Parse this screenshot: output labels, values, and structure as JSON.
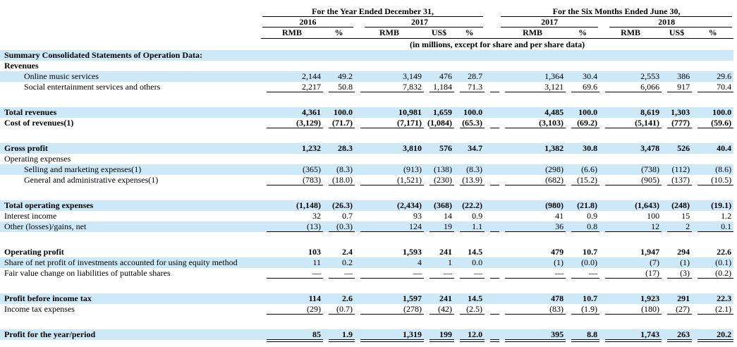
{
  "colors": {
    "row_highlight": "#cde8f7",
    "text": "#000000",
    "rule": "#000000"
  },
  "table": {
    "section_note": "(in millions, except for share and per share data)",
    "column_groups": [
      {
        "title": "For the Year Ended December 31,",
        "periods": [
          {
            "year": "2016",
            "columns": [
              "RMB",
              "%"
            ]
          },
          {
            "year": "2017",
            "columns": [
              "RMB",
              "US$",
              "%"
            ]
          }
        ]
      },
      {
        "title": "For the Six Months Ended June 30,",
        "periods": [
          {
            "year": "2017",
            "columns": [
              "RMB",
              "%"
            ]
          },
          {
            "year": "2018",
            "columns": [
              "RMB",
              "US$",
              "%"
            ]
          }
        ]
      }
    ],
    "rows": [
      {
        "label": "Summary Consolidated Statements of Operation Data:",
        "bold": true,
        "highlight": true,
        "values": [
          "",
          "",
          "",
          "",
          "",
          "",
          "",
          "",
          "",
          ""
        ]
      },
      {
        "label": "Revenues",
        "bold": true,
        "values": [
          "",
          "",
          "",
          "",
          "",
          "",
          "",
          "",
          "",
          ""
        ]
      },
      {
        "label": "Online music services",
        "indent": true,
        "highlight": true,
        "values": [
          "2,144",
          "49.2",
          "3,149",
          "476",
          "28.7",
          "1,364",
          "30.4",
          "2,553",
          "386",
          "29.6"
        ]
      },
      {
        "label": "Social entertainment services and others",
        "indent": true,
        "underline": "single",
        "values": [
          "2,217",
          "50.8",
          "7,832",
          "1,184",
          "71.3",
          "3,121",
          "69.6",
          "6,066",
          "917",
          "70.4"
        ]
      },
      {
        "spacer": true
      },
      {
        "label": "Total revenues",
        "bold": true,
        "highlight": true,
        "values": [
          "4,361",
          "100.0",
          "10,981",
          "1,659",
          "100.0",
          "4,485",
          "100.0",
          "8,619",
          "1,303",
          "100.0"
        ]
      },
      {
        "label": "Cost of revenues(1)",
        "bold": true,
        "underline": "single",
        "values": [
          "(3,129)",
          "(71.7)",
          "(7,171)",
          "(1,084)",
          "(65.3)",
          "(3,103)",
          "(69.2)",
          "(5,141)",
          "(777)",
          "(59.6)"
        ]
      },
      {
        "spacer": true
      },
      {
        "label": "Gross profit",
        "bold": true,
        "highlight": true,
        "values": [
          "1,232",
          "28.3",
          "3,810",
          "576",
          "34.7",
          "1,382",
          "30.8",
          "3,478",
          "526",
          "40.4"
        ]
      },
      {
        "label": "Operating expenses",
        "values": [
          "",
          "",
          "",
          "",
          "",
          "",
          "",
          "",
          "",
          ""
        ]
      },
      {
        "label": "Selling and marketing expenses(1)",
        "indent": true,
        "highlight": true,
        "values": [
          "(365)",
          "(8.3)",
          "(913)",
          "(138)",
          "(8.3)",
          "(298)",
          "(6.6)",
          "(738)",
          "(112)",
          "(8.6)"
        ]
      },
      {
        "label": "General and administrative expenses(1)",
        "indent": true,
        "underline": "single",
        "values": [
          "(783)",
          "(18.0)",
          "(1,521)",
          "(230)",
          "(13.9)",
          "(682)",
          "(15.2)",
          "(905)",
          "(137)",
          "(10.5)"
        ]
      },
      {
        "spacer": true
      },
      {
        "label": "Total operating expenses",
        "bold": true,
        "highlight": true,
        "values": [
          "(1,148)",
          "(26.3)",
          "(2,434)",
          "(368)",
          "(22.2)",
          "(980)",
          "(21.8)",
          "(1,643)",
          "(248)",
          "(19.1)"
        ]
      },
      {
        "label": "Interest income",
        "values": [
          "32",
          "0.7",
          "93",
          "14",
          "0.9",
          "41",
          "0.9",
          "100",
          "15",
          "1.2"
        ]
      },
      {
        "label": "Other (losses)/gains, net",
        "highlight": true,
        "underline": "single",
        "values": [
          "(13)",
          "(0.3)",
          "124",
          "19",
          "1.1",
          "36",
          "0.8",
          "12",
          "2",
          "0.1"
        ]
      },
      {
        "spacer": true
      },
      {
        "label": "Operating profit",
        "bold": true,
        "values": [
          "103",
          "2.4",
          "1,593",
          "241",
          "14.5",
          "479",
          "10.7",
          "1,947",
          "294",
          "22.6"
        ]
      },
      {
        "label": "Share of net profit of investments accounted for using equity method",
        "highlight": true,
        "values": [
          "11",
          "0.2",
          "4",
          "1",
          "0.0",
          "(1)",
          "(0.0)",
          "(7)",
          "(1)",
          "(0.1)"
        ]
      },
      {
        "label": "Fair value change on liabilities of puttable shares",
        "underline": "single",
        "values": [
          "—",
          "—",
          "—",
          "—",
          "—",
          "—",
          "—",
          "(17)",
          "(3)",
          "(0.2)"
        ]
      },
      {
        "spacer": true
      },
      {
        "label": "Profit before income tax",
        "bold": true,
        "highlight": true,
        "values": [
          "114",
          "2.6",
          "1,597",
          "241",
          "14.5",
          "478",
          "10.7",
          "1,923",
          "291",
          "22.3"
        ]
      },
      {
        "label": "Income tax expenses",
        "underline": "single",
        "values": [
          "(29)",
          "(0.7)",
          "(278)",
          "(42)",
          "(2.5)",
          "(83)",
          "(1.9)",
          "(180)",
          "(27)",
          "(2.1)"
        ]
      },
      {
        "spacer": true
      },
      {
        "label": "Profit for the year/period",
        "bold": true,
        "highlight": true,
        "underline": "double",
        "values": [
          "85",
          "1.9",
          "1,319",
          "199",
          "12.0",
          "395",
          "8.8",
          "1,743",
          "263",
          "20.2"
        ]
      }
    ]
  }
}
